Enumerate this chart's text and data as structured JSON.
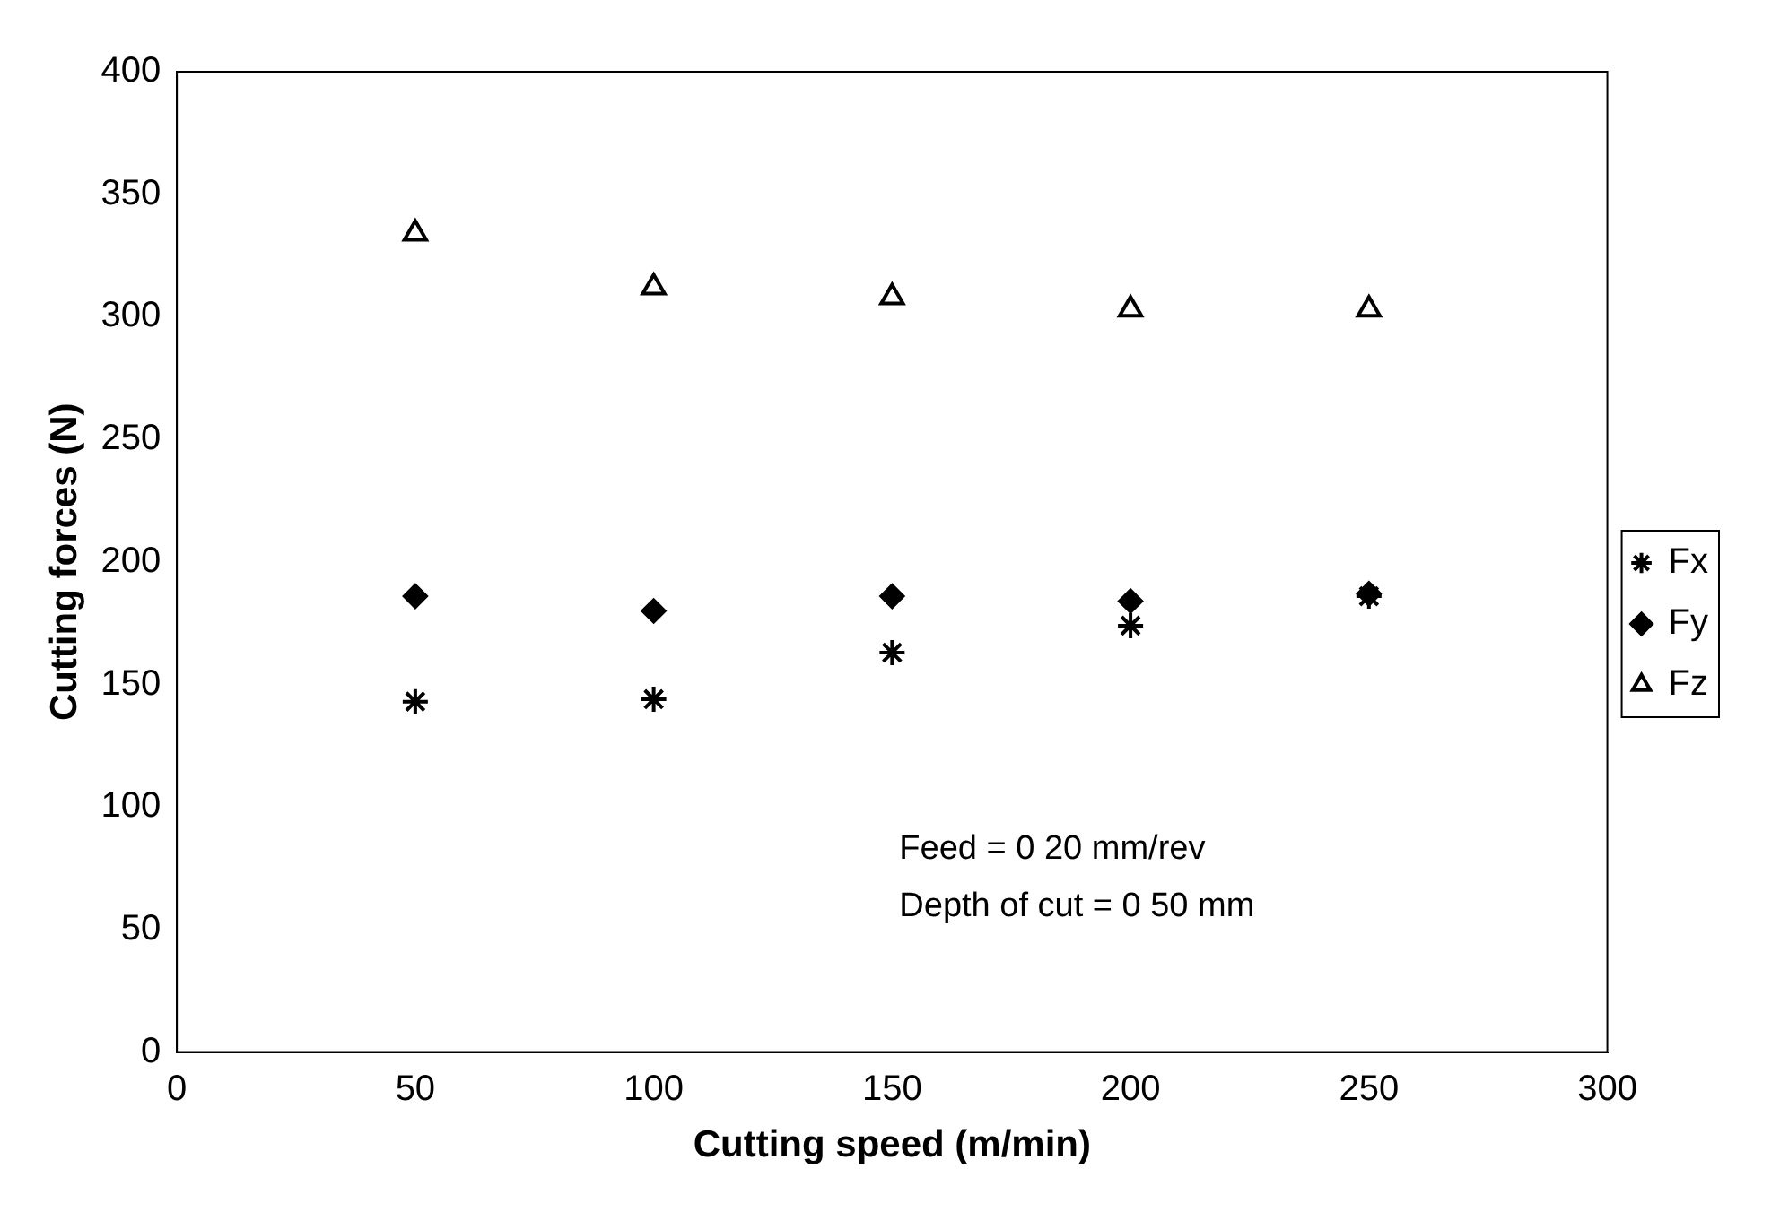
{
  "chart_data": {
    "type": "scatter",
    "xlabel": "Cutting speed (m/min)",
    "ylabel": "Cutting forces (N)",
    "x": [
      50,
      100,
      150,
      200,
      250
    ],
    "series": [
      {
        "name": "Fx",
        "color": "#000000",
        "marker": "cross",
        "values": [
          143,
          144,
          163,
          174,
          186
        ]
      },
      {
        "name": "Fy",
        "color": "#000000",
        "marker": "diamond",
        "values": [
          186,
          180,
          186,
          184,
          187
        ]
      },
      {
        "name": "Fz",
        "color": "#000000",
        "marker": "triangle",
        "values": [
          334,
          312,
          308,
          303,
          303
        ]
      }
    ],
    "xlim": [
      0,
      300
    ],
    "xticks": [
      0,
      50,
      100,
      150,
      200,
      250,
      300
    ],
    "ylim": [
      0,
      400
    ],
    "yticks": [
      0,
      50,
      100,
      150,
      200,
      250,
      300,
      350,
      400
    ],
    "grid": false,
    "legend": "right",
    "annotations": [
      "Feed = 0 20 mm/rev",
      "Depth of cut = 0 50 mm"
    ]
  }
}
